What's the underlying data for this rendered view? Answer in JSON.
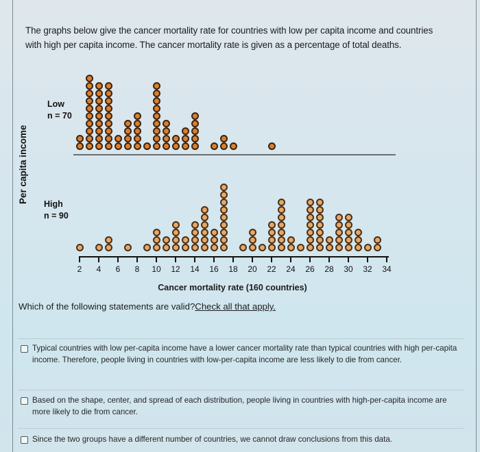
{
  "intro_text": "The graphs below give the cancer mortality rate for countries with low per capita income and countries with high per capita income. The cancer mortality rate is given as a percentage of total deaths.",
  "chart_data": {
    "type": "dot-plot",
    "title": "",
    "xlabel": "Cancer mortality rate (160 countries)",
    "ylabel": "Per capita income",
    "x_ticks": [
      2,
      4,
      6,
      8,
      10,
      12,
      14,
      16,
      18,
      20,
      22,
      24,
      26,
      28,
      30,
      32,
      34
    ],
    "xlim": [
      2,
      34
    ],
    "grid": false,
    "series": [
      {
        "name": "Low",
        "label": "Low",
        "n_label": "n = 70",
        "n": 70,
        "color": "#d9802f",
        "x": [
          2,
          3,
          4,
          5,
          6,
          7,
          8,
          9,
          10,
          11,
          12,
          13,
          14,
          16,
          17,
          18,
          22
        ],
        "counts": [
          2,
          10,
          9,
          9,
          2,
          4,
          5,
          1,
          9,
          4,
          2,
          3,
          5,
          1,
          2,
          1,
          1
        ]
      },
      {
        "name": "High",
        "label": "High",
        "n_label": "n = 90",
        "n": 90,
        "color": "#e5a866",
        "x": [
          2,
          4,
          5,
          7,
          9,
          10,
          11,
          12,
          13,
          14,
          15,
          16,
          17,
          19,
          20,
          21,
          22,
          23,
          24,
          25,
          26,
          27,
          28,
          29,
          30,
          31,
          32,
          33
        ],
        "counts": [
          1,
          1,
          2,
          1,
          1,
          3,
          2,
          4,
          2,
          4,
          6,
          3,
          9,
          1,
          3,
          1,
          4,
          7,
          2,
          1,
          7,
          7,
          2,
          5,
          5,
          3,
          1,
          2
        ]
      }
    ]
  },
  "question": {
    "text": "Which of the following statements are valid?",
    "link": "Check all that apply."
  },
  "options": [
    {
      "text": "Typical countries with low per-capita income have a lower cancer mortality rate than typical countries with high per-capita income. Therefore, people living in countries with low-per-capita income are less likely to die from cancer.",
      "checked": false
    },
    {
      "text": "Based on the shape, center, and spread of each distribution, people living in countries with high-per-capita income are more likely to die from cancer.",
      "checked": false
    },
    {
      "text": "Since the two groups have a different number of countries, we cannot draw conclusions from this data.",
      "checked": false
    }
  ]
}
